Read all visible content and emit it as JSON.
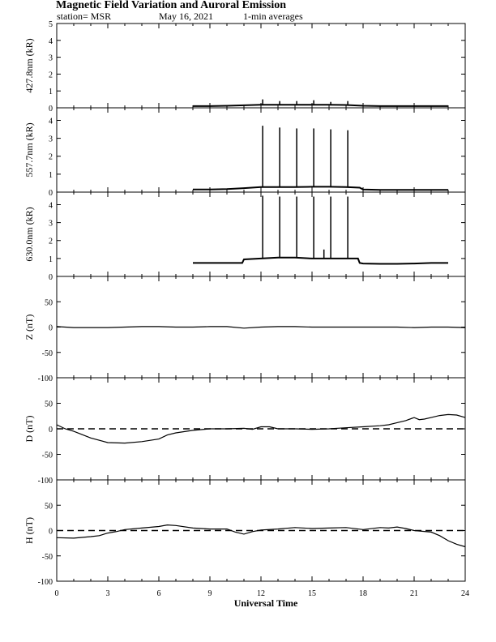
{
  "header": {
    "title": "Magnetic Field Variation and Auroral Emission",
    "station": "station= MSR",
    "date": "May 16, 2021",
    "averaging": "1-min averages"
  },
  "chart_data": [
    {
      "type": "line",
      "ylabel": "427.8nm (kR)",
      "ylim": [
        0,
        5
      ],
      "yticks": [
        0,
        1,
        2,
        3,
        4,
        5
      ],
      "xlim": [
        0,
        24
      ],
      "series": [
        {
          "values": [
            [
              8.0,
              0.1
            ],
            [
              9,
              0.1
            ],
            [
              10,
              0.12
            ],
            [
              11,
              0.15
            ],
            [
              12,
              0.18
            ],
            [
              13,
              0.18
            ],
            [
              14,
              0.18
            ],
            [
              15,
              0.18
            ],
            [
              16,
              0.18
            ],
            [
              17,
              0.17
            ],
            [
              18,
              0.12
            ],
            [
              19,
              0.1
            ],
            [
              20,
              0.1
            ],
            [
              21,
              0.1
            ],
            [
              22,
              0.1
            ],
            [
              23.0,
              0.1
            ]
          ]
        }
      ],
      "spikes": [
        [
          12.1,
          0.5
        ],
        [
          13.1,
          0.4
        ],
        [
          14.1,
          0.4
        ],
        [
          15.1,
          0.45
        ],
        [
          16.1,
          0.35
        ],
        [
          17.1,
          0.4
        ]
      ]
    },
    {
      "type": "line",
      "ylabel": "557.7nm (kR)",
      "ylim": [
        0,
        4.7
      ],
      "yticks": [
        0,
        1,
        2,
        3,
        4
      ],
      "xlim": [
        0,
        24
      ],
      "series": [
        {
          "values": [
            [
              8.0,
              0.15
            ],
            [
              9,
              0.15
            ],
            [
              10,
              0.17
            ],
            [
              11,
              0.22
            ],
            [
              12,
              0.28
            ],
            [
              13,
              0.28
            ],
            [
              14,
              0.28
            ],
            [
              15,
              0.3
            ],
            [
              16,
              0.3
            ],
            [
              17,
              0.28
            ],
            [
              17.8,
              0.25
            ],
            [
              18,
              0.15
            ],
            [
              19,
              0.12
            ],
            [
              20,
              0.12
            ],
            [
              21,
              0.12
            ],
            [
              22,
              0.12
            ],
            [
              23.0,
              0.12
            ]
          ]
        }
      ],
      "spikes": [
        [
          12.1,
          3.7
        ],
        [
          13.1,
          3.6
        ],
        [
          14.1,
          3.55
        ],
        [
          15.1,
          3.55
        ],
        [
          16.1,
          3.5
        ],
        [
          17.1,
          3.45
        ]
      ]
    },
    {
      "type": "line",
      "ylabel": "630.0nm (kR)",
      "ylim": [
        0,
        4.7
      ],
      "yticks": [
        0,
        1,
        2,
        3,
        4
      ],
      "xlim": [
        0,
        24
      ],
      "series": [
        {
          "values": [
            [
              8.0,
              0.75
            ],
            [
              9,
              0.75
            ],
            [
              10,
              0.75
            ],
            [
              10.9,
              0.75
            ],
            [
              11.0,
              0.95
            ],
            [
              12,
              1.0
            ],
            [
              13,
              1.05
            ],
            [
              14,
              1.05
            ],
            [
              15,
              1.0
            ],
            [
              16,
              1.0
            ],
            [
              17,
              1.0
            ],
            [
              17.7,
              1.0
            ],
            [
              17.8,
              0.75
            ],
            [
              18,
              0.72
            ],
            [
              19,
              0.7
            ],
            [
              20,
              0.7
            ],
            [
              21,
              0.72
            ],
            [
              22,
              0.75
            ],
            [
              23.0,
              0.75
            ]
          ]
        }
      ],
      "spikes": [
        [
          12.1,
          4.5
        ],
        [
          13.1,
          4.45
        ],
        [
          14.1,
          4.45
        ],
        [
          15.1,
          4.45
        ],
        [
          16.1,
          4.45
        ],
        [
          17.1,
          4.45
        ],
        [
          15.7,
          1.5
        ]
      ]
    },
    {
      "type": "line",
      "ylabel": "Z (nT)",
      "ylim": [
        -100,
        100
      ],
      "yticks": [
        -100,
        -50,
        0,
        50
      ],
      "xlim": [
        0,
        24
      ],
      "zero_line": false,
      "series": [
        {
          "values": [
            [
              0,
              1
            ],
            [
              1,
              -1
            ],
            [
              2,
              -1
            ],
            [
              3,
              -1
            ],
            [
              4,
              0
            ],
            [
              5,
              1
            ],
            [
              6,
              1
            ],
            [
              7,
              0
            ],
            [
              8,
              0
            ],
            [
              9,
              1
            ],
            [
              10,
              1
            ],
            [
              11,
              -2
            ],
            [
              12,
              0
            ],
            [
              13,
              1
            ],
            [
              14,
              1
            ],
            [
              15,
              0
            ],
            [
              16,
              0
            ],
            [
              17,
              0
            ],
            [
              18,
              0
            ],
            [
              19,
              0
            ],
            [
              20,
              0
            ],
            [
              21,
              -1
            ],
            [
              22,
              0
            ],
            [
              23,
              0
            ],
            [
              24,
              -1
            ]
          ]
        }
      ]
    },
    {
      "type": "line",
      "ylabel": "D (nT)",
      "ylim": [
        -100,
        100
      ],
      "yticks": [
        -100,
        -50,
        0,
        50
      ],
      "xlim": [
        0,
        24
      ],
      "zero_line": true,
      "series": [
        {
          "values": [
            [
              0,
              8
            ],
            [
              0.5,
              0
            ],
            [
              1,
              -5
            ],
            [
              2,
              -18
            ],
            [
              3,
              -27
            ],
            [
              4,
              -28
            ],
            [
              5,
              -25
            ],
            [
              6,
              -20
            ],
            [
              6.5,
              -12
            ],
            [
              7,
              -8
            ],
            [
              8,
              -3
            ],
            [
              9,
              0
            ],
            [
              10,
              0
            ],
            [
              11,
              1
            ],
            [
              11.5,
              -1
            ],
            [
              12,
              4
            ],
            [
              12.5,
              4
            ],
            [
              13,
              0
            ],
            [
              14,
              0
            ],
            [
              15,
              -1
            ],
            [
              16,
              0
            ],
            [
              17,
              2
            ],
            [
              18,
              4
            ],
            [
              19,
              6
            ],
            [
              19.5,
              8
            ],
            [
              20,
              12
            ],
            [
              20.5,
              16
            ],
            [
              21,
              22
            ],
            [
              21.3,
              18
            ],
            [
              21.6,
              19
            ],
            [
              22,
              22
            ],
            [
              22.5,
              26
            ],
            [
              23,
              28
            ],
            [
              23.5,
              27
            ],
            [
              24,
              22
            ]
          ]
        }
      ]
    },
    {
      "type": "line",
      "ylabel": "H (nT)",
      "ylim": [
        -100,
        100
      ],
      "yticks": [
        -100,
        -50,
        0,
        50
      ],
      "xlim": [
        0,
        24
      ],
      "zero_line": true,
      "series": [
        {
          "values": [
            [
              0,
              -14
            ],
            [
              1,
              -15
            ],
            [
              2,
              -12
            ],
            [
              2.5,
              -10
            ],
            [
              3,
              -5
            ],
            [
              3.5,
              -2
            ],
            [
              4,
              2
            ],
            [
              5,
              5
            ],
            [
              6,
              8
            ],
            [
              6.5,
              11
            ],
            [
              7,
              10
            ],
            [
              8,
              5
            ],
            [
              9,
              3
            ],
            [
              10,
              3
            ],
            [
              10.5,
              -3
            ],
            [
              11,
              -7
            ],
            [
              11.5,
              -2
            ],
            [
              12,
              1
            ],
            [
              13,
              3
            ],
            [
              14,
              6
            ],
            [
              15,
              4
            ],
            [
              16,
              5
            ],
            [
              17,
              6
            ],
            [
              18,
              2
            ],
            [
              19,
              6
            ],
            [
              19.5,
              5
            ],
            [
              20,
              7
            ],
            [
              20.5,
              4
            ],
            [
              21,
              0
            ],
            [
              22,
              -3
            ],
            [
              22.5,
              -10
            ],
            [
              23,
              -20
            ],
            [
              23.5,
              -27
            ],
            [
              24,
              -32
            ]
          ]
        }
      ]
    }
  ],
  "xaxis": {
    "label": "Universal Time",
    "ticks": [
      0,
      3,
      6,
      9,
      12,
      15,
      18,
      21,
      24
    ]
  }
}
